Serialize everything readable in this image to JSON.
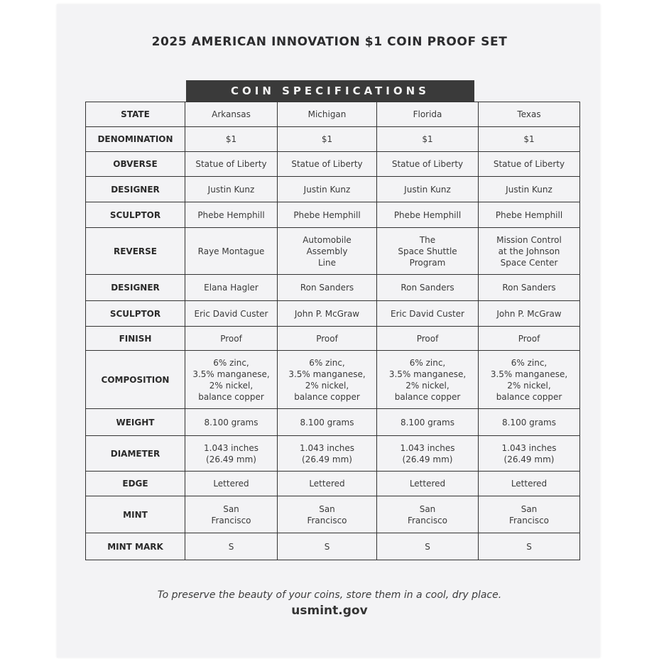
{
  "title": "2025 AMERICAN INNOVATION $1 COIN PROOF SET",
  "banner": "COIN SPECIFICATIONS",
  "rows": [
    {
      "label": "STATE",
      "values": [
        "Arkansas",
        "Michigan",
        "Florida",
        "Texas"
      ]
    },
    {
      "label": "DENOMINATION",
      "values": [
        "$1",
        "$1",
        "$1",
        "$1"
      ]
    },
    {
      "label": "OBVERSE",
      "values": [
        "Statue of Liberty",
        "Statue of Liberty",
        "Statue of Liberty",
        "Statue of Liberty"
      ]
    },
    {
      "label": "DESIGNER",
      "values": [
        "Justin Kunz",
        "Justin Kunz",
        "Justin Kunz",
        "Justin Kunz"
      ]
    },
    {
      "label": "SCULPTOR",
      "values": [
        "Phebe Hemphill",
        "Phebe Hemphill",
        "Phebe Hemphill",
        "Phebe Hemphill"
      ]
    },
    {
      "label": "REVERSE",
      "values": [
        "Raye Montague",
        "Automobile\nAssembly\nLine",
        "The\nSpace Shuttle\nProgram",
        "Mission Control\nat the Johnson\nSpace Center"
      ]
    },
    {
      "label": "DESIGNER",
      "values": [
        "Elana Hagler",
        "Ron Sanders",
        "Ron Sanders",
        "Ron Sanders"
      ]
    },
    {
      "label": "SCULPTOR",
      "values": [
        "Eric David Custer",
        "John P. McGraw",
        "Eric David Custer",
        "John P. McGraw"
      ]
    },
    {
      "label": "FINISH",
      "values": [
        "Proof",
        "Proof",
        "Proof",
        "Proof"
      ]
    },
    {
      "label": "COMPOSITION",
      "values": [
        "6% zinc,\n3.5% manganese,\n2% nickel,\nbalance copper",
        "6% zinc,\n3.5% manganese,\n2% nickel,\nbalance copper",
        "6% zinc,\n3.5% manganese,\n2% nickel,\nbalance copper",
        "6% zinc,\n3.5% manganese,\n2% nickel,\nbalance copper"
      ]
    },
    {
      "label": "WEIGHT",
      "values": [
        "8.100 grams",
        "8.100 grams",
        "8.100 grams",
        "8.100 grams"
      ]
    },
    {
      "label": "DIAMETER",
      "values": [
        "1.043 inches\n(26.49 mm)",
        "1.043 inches\n(26.49 mm)",
        "1.043 inches\n(26.49 mm)",
        "1.043 inches\n(26.49 mm)"
      ]
    },
    {
      "label": "EDGE",
      "values": [
        "Lettered",
        "Lettered",
        "Lettered",
        "Lettered"
      ]
    },
    {
      "label": "MINT",
      "values": [
        "San\nFrancisco",
        "San\nFrancisco",
        "San\nFrancisco",
        "San\nFrancisco"
      ]
    },
    {
      "label": "MINT MARK",
      "values": [
        "S",
        "S",
        "S",
        "S"
      ]
    }
  ],
  "footer": {
    "note": "To preserve the beauty of your coins, store them in a cool, dry place.",
    "site": "usmint.gov"
  }
}
